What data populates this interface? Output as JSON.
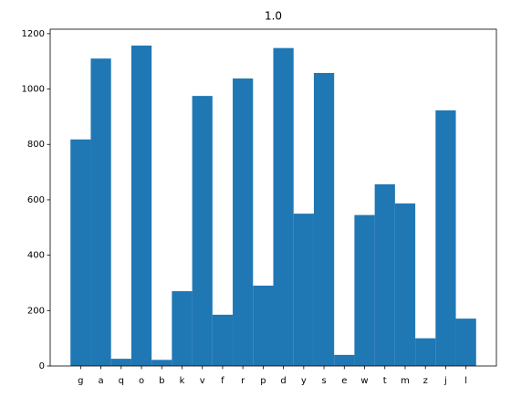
{
  "chart_data": {
    "type": "bar",
    "title": "1.0",
    "categories": [
      "g",
      "a",
      "q",
      "o",
      "b",
      "k",
      "v",
      "f",
      "r",
      "p",
      "d",
      "y",
      "s",
      "e",
      "w",
      "t",
      "m",
      "z",
      "j",
      "l"
    ],
    "values": [
      818,
      1110,
      26,
      1157,
      22,
      270,
      975,
      185,
      1038,
      290,
      1148,
      550,
      1058,
      40,
      545,
      656,
      587,
      100,
      923,
      171
    ],
    "color": "#1f77b4",
    "ylim": [
      0,
      1216
    ],
    "yticks": [
      0,
      200,
      400,
      600,
      800,
      1000,
      1200
    ],
    "bar_width": 1.0,
    "grid": false
  }
}
